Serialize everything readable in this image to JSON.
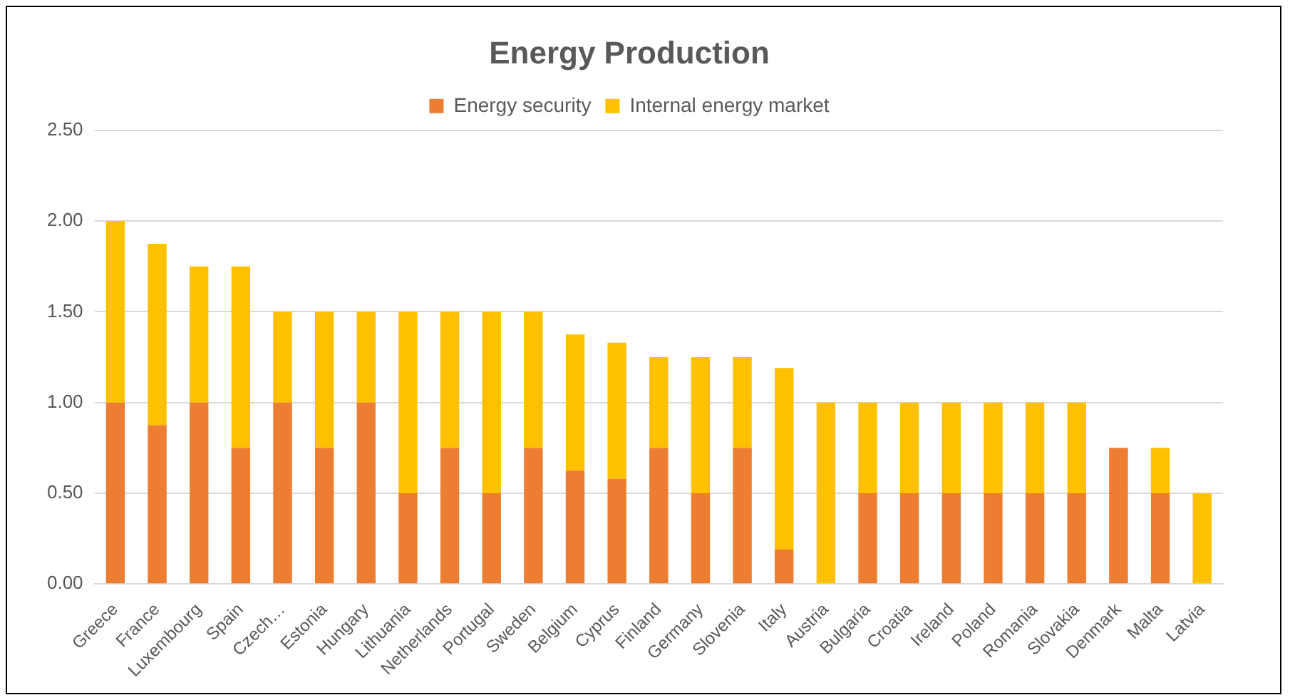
{
  "chart_data": {
    "type": "bar",
    "title": "Energy Production",
    "stacked": true,
    "legend": "top",
    "grid": "y",
    "categories": [
      "Greece",
      "France",
      "Luxembourg",
      "Spain",
      "Czech…",
      "Estonia",
      "Hungary",
      "Lithuania",
      "Netherlands",
      "Portugal",
      "Sweden",
      "Belgium",
      "Cyprus",
      "Finland",
      "Germany",
      "Slovenia",
      "Italy",
      "Austria",
      "Bulgaria",
      "Croatia",
      "Ireland",
      "Poland",
      "Romania",
      "Slovakia",
      "Denmark",
      "Malta",
      "Latvia"
    ],
    "series": [
      {
        "name": "Energy security",
        "color": "#ed7d31",
        "values": [
          1.0,
          0.875,
          1.0,
          0.75,
          1.0,
          0.75,
          1.0,
          0.5,
          0.75,
          0.5,
          0.75,
          0.625,
          0.58,
          0.75,
          0.5,
          0.75,
          0.19,
          0,
          0.5,
          0.5,
          0.5,
          0.5,
          0.5,
          0.5,
          0.75,
          0.5,
          0
        ]
      },
      {
        "name": "Internal energy market",
        "color": "#ffc000",
        "values": [
          1.0,
          1.0,
          0.75,
          1.0,
          0.5,
          0.75,
          0.5,
          1.0,
          0.75,
          1.0,
          0.75,
          0.75,
          0.75,
          0.5,
          0.75,
          0.5,
          1.0,
          1.0,
          0.5,
          0.5,
          0.5,
          0.5,
          0.5,
          0.5,
          0,
          0.25,
          0.5
        ]
      }
    ],
    "ylim": [
      0,
      2.5
    ],
    "yticks": [
      {
        "value": 0,
        "label": "0.00"
      },
      {
        "value": 0.5,
        "label": "0.50"
      },
      {
        "value": 1,
        "label": "1.00"
      },
      {
        "value": 1.5,
        "label": "1.50"
      },
      {
        "value": 2,
        "label": "2.00"
      },
      {
        "value": 2.5,
        "label": "2.50"
      }
    ]
  }
}
